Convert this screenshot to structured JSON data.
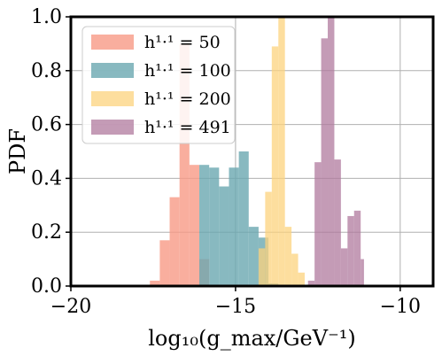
{
  "chart_data": {
    "type": "histogram",
    "xlabel": "log₁₀(g_max/GeV⁻¹)",
    "ylabel": "PDF",
    "xlim": [
      -20,
      -9
    ],
    "ylim": [
      0,
      1.0
    ],
    "x_ticks": [
      -20,
      -15,
      -10
    ],
    "x_tick_labels": [
      "−20",
      "−15",
      "−10"
    ],
    "y_ticks": [
      0.0,
      0.2,
      0.4,
      0.6,
      0.8,
      1.0
    ],
    "y_tick_labels": [
      "0.0",
      "0.2",
      "0.4",
      "0.6",
      "0.8",
      "1.0"
    ],
    "grid": true,
    "legend_position": "top-left",
    "series": [
      {
        "name": "h¹·¹ = 50",
        "color": "#f89a86",
        "opacity": 0.8,
        "bins": [
          {
            "x0": -17.6,
            "x1": -17.3,
            "y": 0.02
          },
          {
            "x0": -17.3,
            "x1": -17.0,
            "y": 0.17
          },
          {
            "x0": -17.0,
            "x1": -16.7,
            "y": 0.33
          },
          {
            "x0": -16.7,
            "x1": -16.4,
            "y": 0.9
          },
          {
            "x0": -16.4,
            "x1": -16.1,
            "y": 0.45
          },
          {
            "x0": -16.1,
            "x1": -15.8,
            "y": 0.1
          }
        ]
      },
      {
        "name": "h¹·¹ = 100",
        "color": "#6aa7b0",
        "opacity": 0.8,
        "bins": [
          {
            "x0": -16.1,
            "x1": -15.8,
            "y": 0.45
          },
          {
            "x0": -15.8,
            "x1": -15.5,
            "y": 0.44
          },
          {
            "x0": -15.5,
            "x1": -15.2,
            "y": 0.37
          },
          {
            "x0": -15.2,
            "x1": -14.9,
            "y": 0.44
          },
          {
            "x0": -14.9,
            "x1": -14.6,
            "y": 0.5
          },
          {
            "x0": -14.6,
            "x1": -14.3,
            "y": 0.22
          },
          {
            "x0": -14.3,
            "x1": -14.0,
            "y": 0.18
          },
          {
            "x0": -14.0,
            "x1": -13.7,
            "y": 0.01
          }
        ]
      },
      {
        "name": "h¹·¹ = 200",
        "color": "#fcd37e",
        "opacity": 0.75,
        "bins": [
          {
            "x0": -14.3,
            "x1": -14.1,
            "y": 0.14
          },
          {
            "x0": -14.1,
            "x1": -13.9,
            "y": 0.35
          },
          {
            "x0": -13.9,
            "x1": -13.7,
            "y": 0.89
          },
          {
            "x0": -13.7,
            "x1": -13.5,
            "y": 1.0
          },
          {
            "x0": -13.5,
            "x1": -13.3,
            "y": 0.22
          },
          {
            "x0": -13.3,
            "x1": -13.1,
            "y": 0.12
          },
          {
            "x0": -13.1,
            "x1": -12.9,
            "y": 0.05
          }
        ]
      },
      {
        "name": "h¹·¹ = 491",
        "color": "#b07a9d",
        "opacity": 0.75,
        "bins": [
          {
            "x0": -12.8,
            "x1": -12.6,
            "y": 0.02
          },
          {
            "x0": -12.6,
            "x1": -12.4,
            "y": 0.46
          },
          {
            "x0": -12.4,
            "x1": -12.2,
            "y": 0.92
          },
          {
            "x0": -12.2,
            "x1": -12.0,
            "y": 1.0
          },
          {
            "x0": -12.0,
            "x1": -11.8,
            "y": 0.47
          },
          {
            "x0": -11.8,
            "x1": -11.6,
            "y": 0.14
          },
          {
            "x0": -11.6,
            "x1": -11.4,
            "y": 0.26
          },
          {
            "x0": -11.4,
            "x1": -11.2,
            "y": 0.28
          },
          {
            "x0": -11.2,
            "x1": -11.1,
            "y": 0.1
          }
        ]
      }
    ]
  }
}
